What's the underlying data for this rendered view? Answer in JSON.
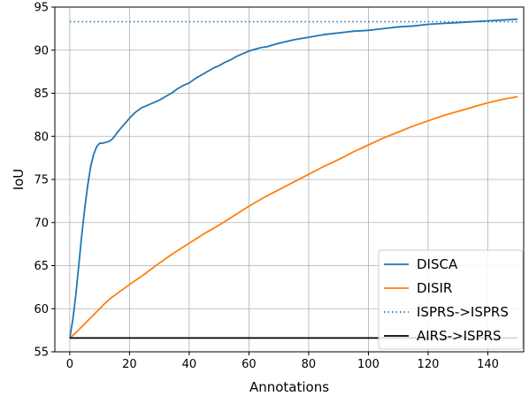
{
  "chart_data": {
    "type": "line",
    "title": "",
    "xlabel": "Annotations",
    "ylabel": "IoU",
    "xlim": [
      -5,
      152
    ],
    "ylim": [
      55,
      95
    ],
    "xticks": [
      0,
      20,
      40,
      60,
      80,
      100,
      120,
      140
    ],
    "yticks": [
      55,
      60,
      65,
      70,
      75,
      80,
      85,
      90,
      95
    ],
    "grid": true,
    "legend_position": "lower-right",
    "series": [
      {
        "name": "DISCA",
        "color": "#1f77b4",
        "style": "solid",
        "x": [
          0,
          1,
          2,
          3,
          4,
          5,
          6,
          7,
          8,
          9,
          10,
          11,
          12,
          13,
          14,
          15,
          16,
          17,
          18,
          19,
          20,
          22,
          24,
          26,
          28,
          30,
          32,
          34,
          36,
          38,
          40,
          42,
          44,
          46,
          48,
          50,
          52,
          54,
          56,
          58,
          60,
          62,
          64,
          66,
          68,
          70,
          75,
          80,
          85,
          90,
          95,
          100,
          105,
          110,
          115,
          120,
          125,
          130,
          135,
          140,
          145,
          150
        ],
        "y": [
          56.6,
          58.7,
          61.5,
          65.0,
          68.5,
          71.6,
          74.3,
          76.5,
          77.9,
          78.8,
          79.2,
          79.2,
          79.3,
          79.4,
          79.6,
          80.0,
          80.5,
          80.9,
          81.3,
          81.7,
          82.1,
          82.8,
          83.3,
          83.6,
          83.9,
          84.2,
          84.6,
          85.0,
          85.5,
          85.9,
          86.2,
          86.7,
          87.1,
          87.5,
          87.9,
          88.2,
          88.6,
          88.9,
          89.3,
          89.6,
          89.9,
          90.1,
          90.3,
          90.4,
          90.6,
          90.8,
          91.2,
          91.5,
          91.8,
          92.0,
          92.2,
          92.3,
          92.5,
          92.7,
          92.8,
          93.0,
          93.1,
          93.2,
          93.3,
          93.4,
          93.5,
          93.6
        ]
      },
      {
        "name": "DISIR",
        "color": "#ff7f0e",
        "style": "solid",
        "x": [
          0,
          2,
          4,
          6,
          8,
          10,
          12,
          14,
          16,
          18,
          20,
          25,
          30,
          35,
          40,
          45,
          50,
          55,
          60,
          65,
          70,
          75,
          80,
          85,
          90,
          95,
          100,
          105,
          110,
          115,
          120,
          125,
          130,
          135,
          140,
          145,
          150
        ],
        "y": [
          56.6,
          57.2,
          57.9,
          58.6,
          59.3,
          60.0,
          60.7,
          61.3,
          61.8,
          62.3,
          62.8,
          64.0,
          65.3,
          66.5,
          67.6,
          68.7,
          69.7,
          70.8,
          71.9,
          72.9,
          73.8,
          74.7,
          75.6,
          76.5,
          77.3,
          78.2,
          79.0,
          79.8,
          80.5,
          81.2,
          81.8,
          82.4,
          82.9,
          83.4,
          83.9,
          84.3,
          84.6
        ]
      },
      {
        "name": "ISPRS->ISPRS",
        "color": "#1f77b4",
        "style": "dotted",
        "x": [
          0,
          150
        ],
        "y": [
          93.3,
          93.3
        ]
      },
      {
        "name": "AIRS->ISPRS",
        "color": "#000000",
        "style": "solid",
        "x": [
          0,
          150
        ],
        "y": [
          56.6,
          56.6
        ]
      }
    ]
  }
}
